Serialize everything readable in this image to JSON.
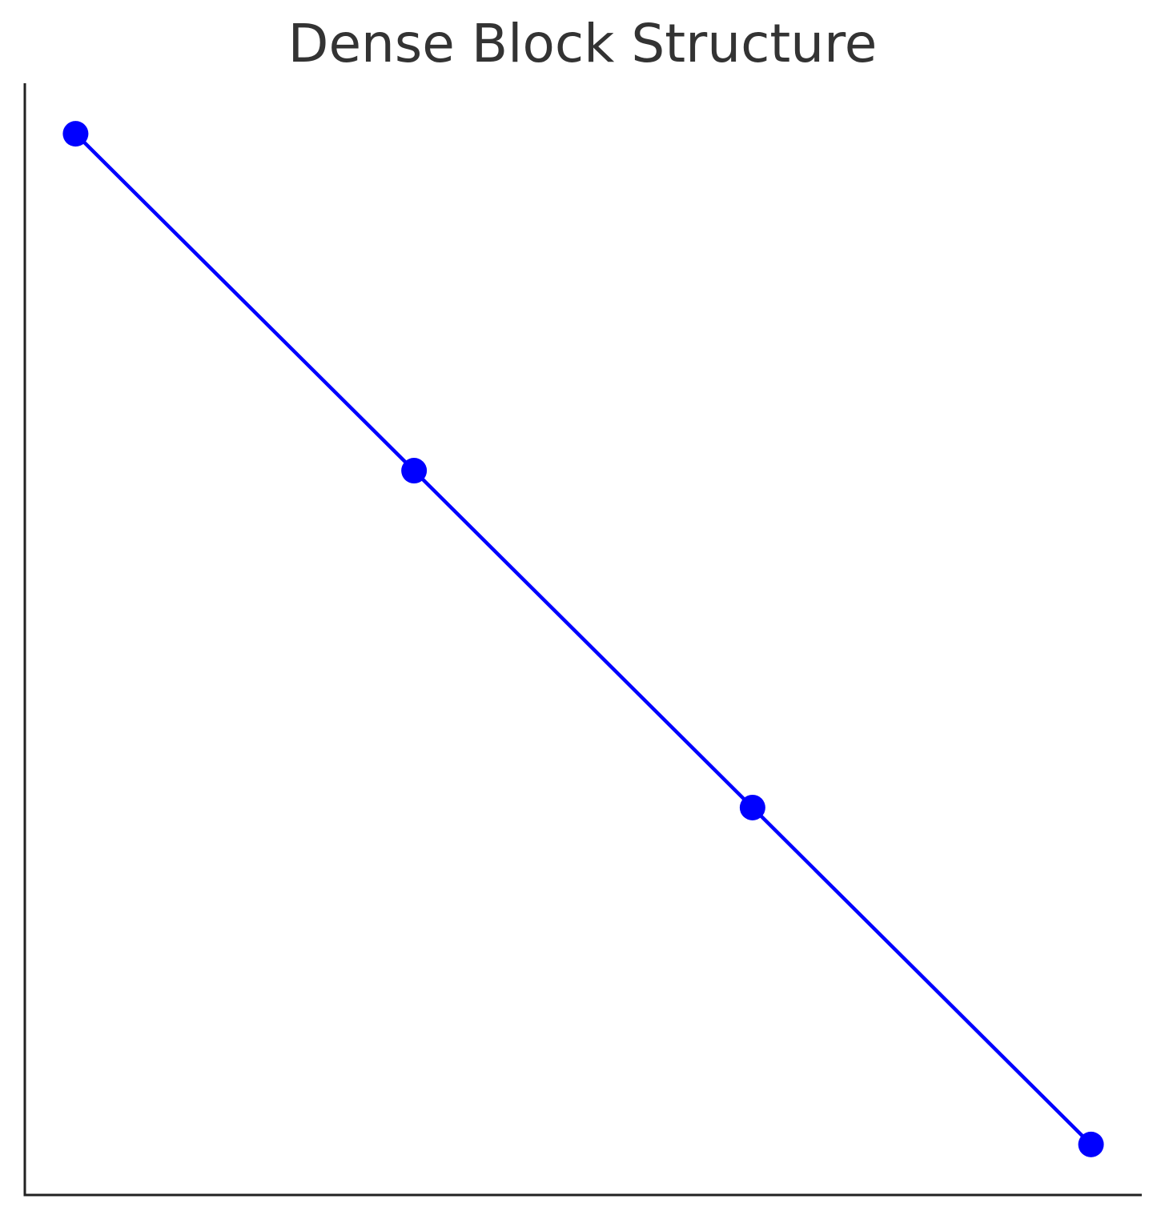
{
  "chart_data": {
    "type": "line",
    "title": "Dense Block Structure",
    "xlabel": "",
    "ylabel": "",
    "x": [
      0,
      1,
      2,
      3
    ],
    "series": [
      {
        "values": [
          3,
          2,
          1,
          0
        ],
        "color": "#0000ff",
        "marker": "circle"
      }
    ],
    "xlim": [
      -0.15,
      3.15
    ],
    "ylim": [
      -0.15,
      3.15
    ],
    "grid": false,
    "ticks_visible": false,
    "axis_color": "#222222"
  }
}
